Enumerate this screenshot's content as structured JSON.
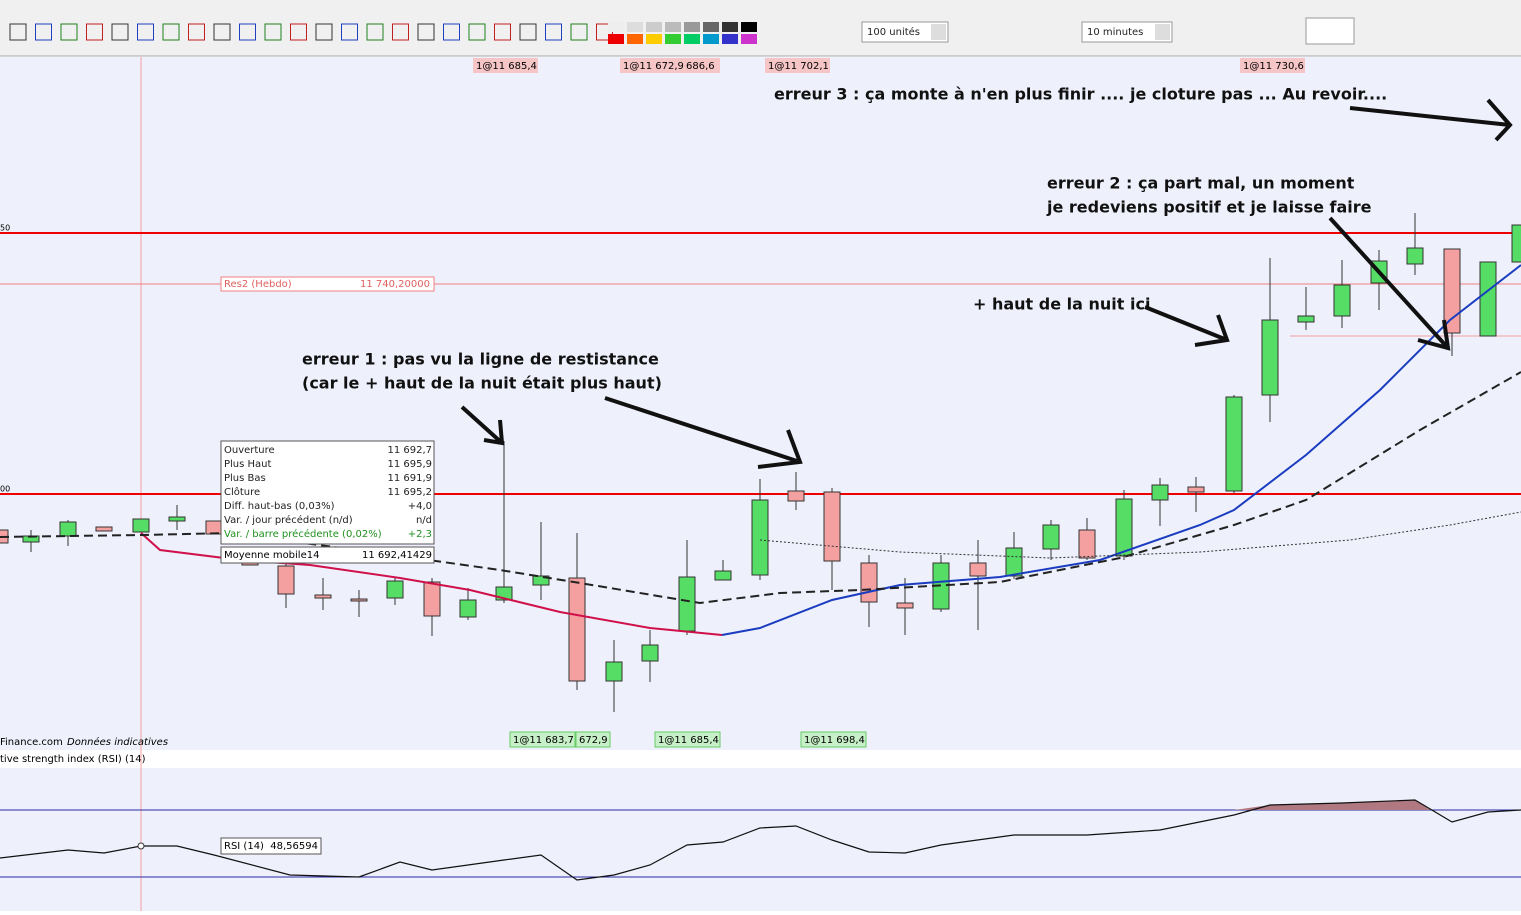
{
  "toolbar": {
    "quantity": "100 unités",
    "period": "10 minutes"
  },
  "axis": {
    "upper": "50",
    "lower": "00"
  },
  "order_labels_top": [
    "1@11 685,4",
    "1@11 672,9",
    "686,6",
    "1@11 702,1",
    "1@11 730,6"
  ],
  "order_labels_bottom": [
    "1@11 683,7",
    "672,9",
    "1@11 685,4",
    "1@11 698,4"
  ],
  "resistance": {
    "name": "Res2 (Hebdo)",
    "value": "11 740,20000"
  },
  "tooltip": {
    "rows": [
      [
        "Ouverture",
        "11 692,7"
      ],
      [
        "Plus Haut",
        "11 695,9"
      ],
      [
        "Plus Bas",
        "11 691,9"
      ],
      [
        "Clôture",
        "11 695,2"
      ],
      [
        "Diff. haut-bas (0,03%)",
        "+4,0"
      ],
      [
        "Var. / jour précédent (n/d)",
        "n/d"
      ],
      [
        "Var. / barre précédente (0,02%)",
        "+2,3"
      ]
    ],
    "ma_name": "Moyenne mobile14",
    "ma_value": "11 692,41429"
  },
  "annotations": [
    "erreur 3 : ça monte à n'en plus finir .... je cloture pas ...  Au revoir....",
    "erreur 2 : ça part mal, un moment",
    "je redeviens positif et je laisse faire",
    "+ haut de la nuit ici",
    "erreur 1 : pas vu la ligne de restistance",
    "(car le + haut de la nuit était plus haut)"
  ],
  "source": {
    "site": "Finance.com",
    "note": "Données indicatives"
  },
  "rsi": {
    "header": "tive strength index (RSI) (14)",
    "label": "RSI (14)",
    "value": "48,56594"
  }
}
